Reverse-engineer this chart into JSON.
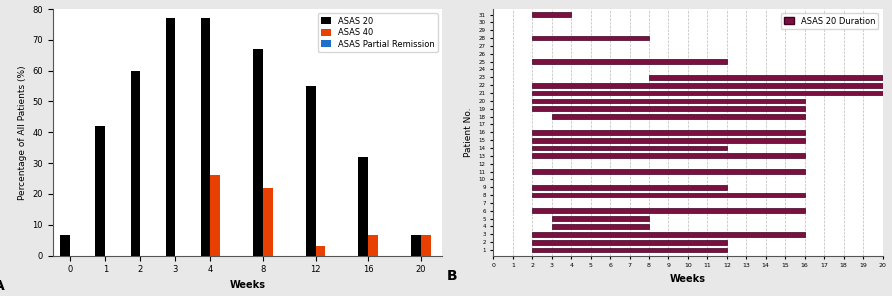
{
  "left": {
    "weeks_labels": [
      "0",
      "1",
      "2",
      "3",
      "4",
      "8",
      "12",
      "16",
      "20"
    ],
    "asas20": [
      6.7,
      42,
      60,
      77,
      77,
      67,
      55,
      32,
      6.7
    ],
    "asas40": [
      0,
      0,
      0,
      0,
      26,
      22,
      3,
      6.7,
      6.7
    ],
    "asas_pr": [
      0,
      0,
      0,
      0,
      0,
      0,
      0,
      0,
      0
    ],
    "xlabel": "Weeks",
    "ylabel": "Percentage of All Patients (%)",
    "ylim": [
      0,
      80
    ],
    "yticks": [
      0,
      10,
      20,
      30,
      40,
      50,
      60,
      70,
      80
    ],
    "label_a": "A",
    "legend_labels": [
      "ASAS 20",
      "ASAS 40",
      "ASAS Partial Remission"
    ],
    "legend_colors": [
      "#000000",
      "#e84000",
      "#1E6FCC"
    ],
    "bg_color": "#ffffff"
  },
  "right": {
    "n_patients": 31,
    "starts": [
      2,
      2,
      2,
      3,
      3,
      2,
      0,
      2,
      2,
      0,
      2,
      0,
      2,
      2,
      2,
      2,
      0,
      3,
      2,
      2,
      2,
      2,
      8,
      0,
      2,
      0,
      0,
      2,
      0,
      0,
      2
    ],
    "ends": [
      12,
      12,
      16,
      8,
      8,
      16,
      0,
      16,
      12,
      0,
      16,
      0,
      16,
      12,
      16,
      16,
      0,
      16,
      16,
      16,
      20,
      20,
      20,
      0,
      12,
      0,
      0,
      8,
      0,
      0,
      4
    ],
    "bar_color": "#7B1040",
    "bar_edge_color": "#3D0020",
    "xlabel": "Weeks",
    "ylabel": "Patient No.",
    "legend_label": "ASAS 20 Duration",
    "xlim": [
      0,
      20
    ],
    "xticks": [
      0,
      1,
      2,
      3,
      4,
      5,
      6,
      7,
      8,
      9,
      10,
      11,
      12,
      13,
      14,
      15,
      16,
      17,
      18,
      19,
      20
    ],
    "label_b": "B",
    "bg_color": "#ffffff"
  }
}
